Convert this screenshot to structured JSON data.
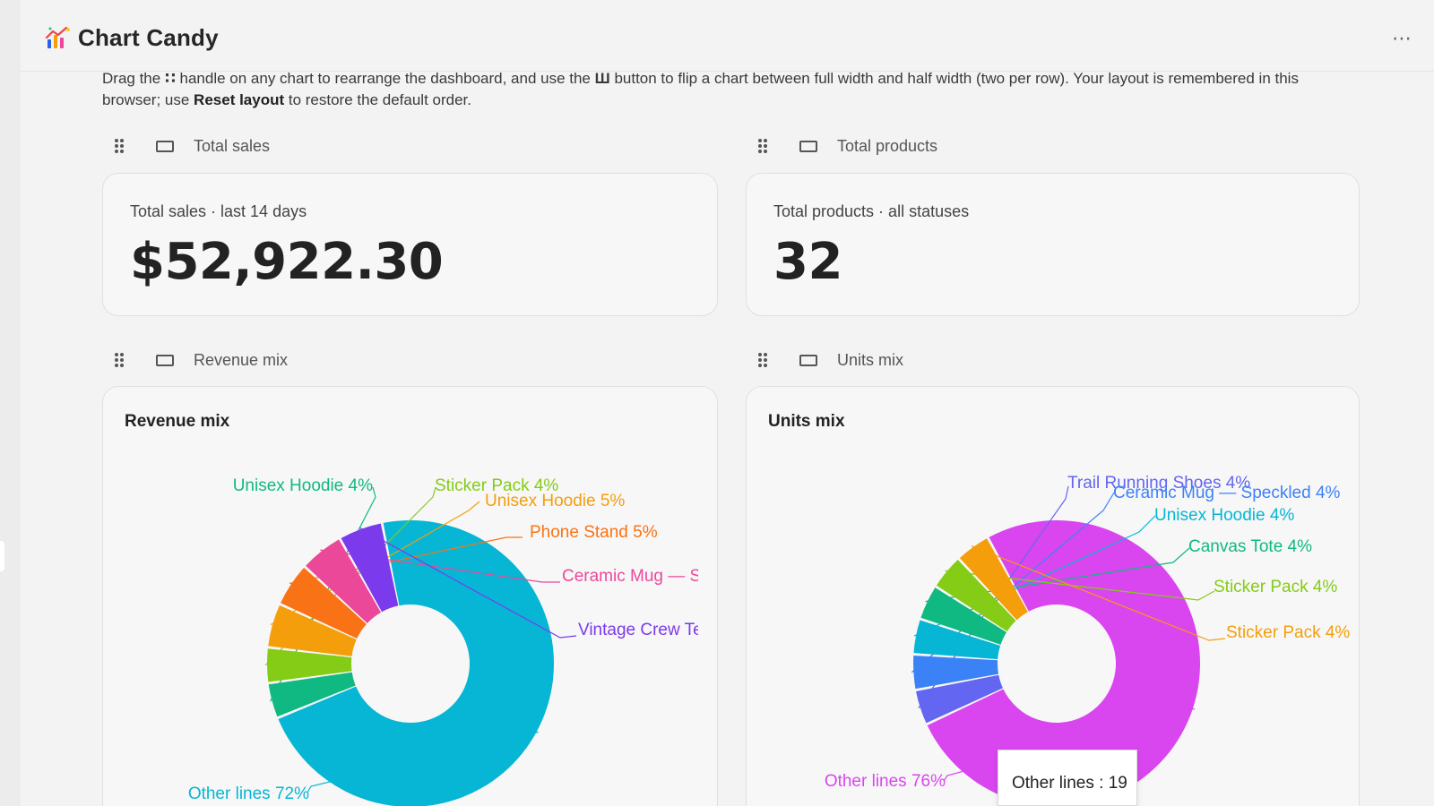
{
  "app": {
    "title": "Chart Candy",
    "logo_icon": "sparkle-chart-logo",
    "menu_icon": "more-horizontal-icon",
    "menu_glyph": "⋯"
  },
  "intro": {
    "part1": "Drag the ",
    "handle_glyph": "∷",
    "part2": " handle on any chart to rearrange the dashboard, and use the ",
    "button_glyph": "Ш",
    "part3": " button to flip a chart between full width and half width (two per row). Your layout is remembered in this browser; use ",
    "reset_label": "Reset layout",
    "part4": " to restore the default order."
  },
  "cards": {
    "total_sales": {
      "header": "Total sales",
      "label": "Total sales · last 14 days",
      "value": "$52,922.30"
    },
    "total_products": {
      "header": "Total products",
      "label": "Total products · all statuses",
      "value": "32"
    },
    "revenue_mix": {
      "header": "Revenue mix",
      "title": "Revenue mix"
    },
    "units_mix": {
      "header": "Units mix",
      "title": "Units mix"
    }
  },
  "chart_data": [
    {
      "type": "pie",
      "title": "Revenue mix",
      "donut": true,
      "slices": [
        {
          "label": "Other lines 72%",
          "value": 72,
          "color": "#06b6d4"
        },
        {
          "label": "Unisex Hoodie 4%",
          "value": 4,
          "color": "#10b981"
        },
        {
          "label": "Sticker Pack 4%",
          "value": 4,
          "color": "#84cc16"
        },
        {
          "label": "Unisex Hoodie 5%",
          "value": 5,
          "color": "#f59e0b"
        },
        {
          "label": "Phone Stand 5%",
          "value": 5,
          "color": "#f97316"
        },
        {
          "label": "Ceramic Mug — S",
          "value": 5,
          "color": "#ec4899"
        },
        {
          "label": "Vintage Crew Te",
          "value": 5,
          "color": "#7c3aed"
        }
      ]
    },
    {
      "type": "pie",
      "title": "Units mix",
      "donut": true,
      "tooltip": "Other lines : 19",
      "slices": [
        {
          "label": "Other lines 76%",
          "value": 76,
          "color": "#d946ef"
        },
        {
          "label": "Trail Running Shoes 4%",
          "value": 4,
          "color": "#6366f1"
        },
        {
          "label": "Ceramic Mug — Speckled 4%",
          "value": 4,
          "color": "#3b82f6"
        },
        {
          "label": "Unisex Hoodie 4%",
          "value": 4,
          "color": "#06b6d4"
        },
        {
          "label": "Canvas Tote 4%",
          "value": 4,
          "color": "#10b981"
        },
        {
          "label": "Sticker Pack 4%",
          "value": 4,
          "color": "#84cc16"
        },
        {
          "label": "Sticker Pack 4%",
          "value": 4,
          "color": "#f59e0b"
        }
      ]
    }
  ]
}
